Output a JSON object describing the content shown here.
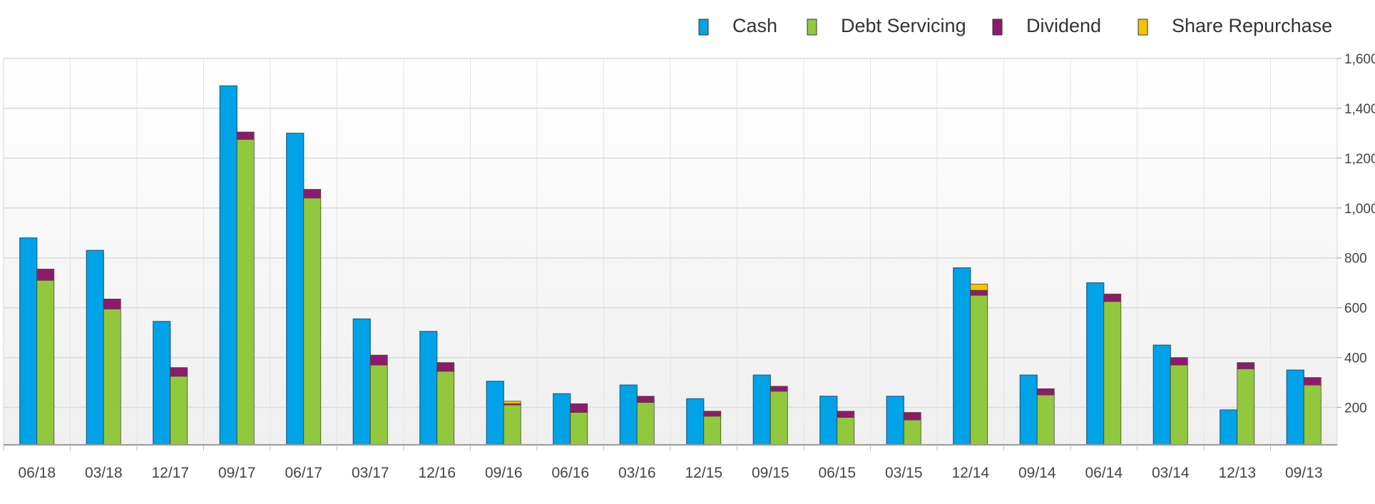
{
  "chart_data": {
    "type": "bar",
    "stacked_second_column": true,
    "categories": [
      "06/18",
      "03/18",
      "12/17",
      "09/17",
      "06/17",
      "03/17",
      "12/16",
      "09/16",
      "06/16",
      "03/16",
      "12/15",
      "09/15",
      "06/15",
      "03/15",
      "12/14",
      "09/14",
      "06/14",
      "03/14",
      "12/13",
      "09/13"
    ],
    "series": [
      {
        "name": "Cash",
        "color": "#00A2E8",
        "stack": "cash",
        "values": [
          880,
          830,
          545,
          1490,
          1300,
          555,
          505,
          305,
          255,
          290,
          235,
          330,
          245,
          245,
          760,
          330,
          700,
          450,
          190,
          350
        ]
      },
      {
        "name": "Debt Servicing",
        "color": "#92C83E",
        "stack": "outflows",
        "values": [
          660,
          545,
          275,
          1225,
          990,
          320,
          295,
          160,
          130,
          170,
          115,
          215,
          110,
          100,
          600,
          200,
          575,
          320,
          305,
          240
        ]
      },
      {
        "name": "Dividend",
        "color": "#8E1A6E",
        "stack": "outflows",
        "values": [
          45,
          40,
          35,
          30,
          35,
          40,
          35,
          5,
          35,
          25,
          20,
          20,
          25,
          30,
          20,
          25,
          30,
          30,
          25,
          30
        ]
      },
      {
        "name": "Share Repurchase",
        "color": "#F5C400",
        "stack": "outflows",
        "values": [
          0,
          0,
          0,
          0,
          0,
          0,
          0,
          10,
          0,
          0,
          0,
          0,
          0,
          0,
          25,
          0,
          0,
          0,
          0,
          0
        ]
      }
    ],
    "title": "",
    "xlabel": "",
    "ylabel": "",
    "ylim": [
      50,
      1600
    ],
    "yticks": [
      200,
      400,
      600,
      800,
      "1,000",
      "1,200",
      "1,400",
      "1,600"
    ],
    "y_axis_side": "right",
    "grid": true,
    "legend_position": "top-right"
  }
}
